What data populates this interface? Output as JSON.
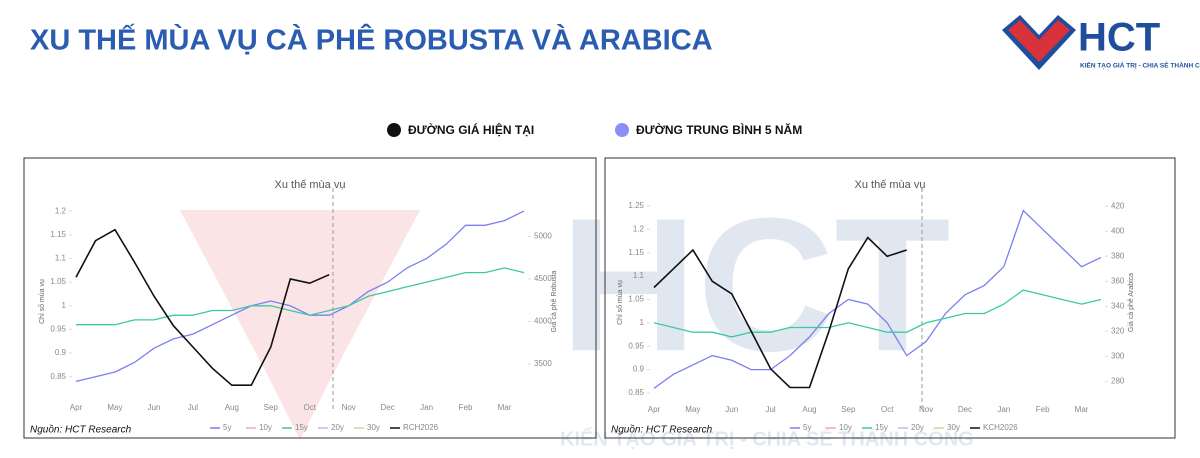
{
  "header": {
    "title": "XU THẾ MÙA VỤ CÀ PHÊ ROBUSTA VÀ ARABICA",
    "logo": "HCT",
    "tagline": "KIẾN TẠO GIÁ TRỊ - CHIA SẺ THÀNH CÔNG"
  },
  "legend": {
    "current": "ĐƯỜNG GIÁ HIỆN TẠI",
    "average": "ĐƯỜNG TRUNG BÌNH 5 NĂM"
  },
  "chart_data": [
    {
      "type": "line",
      "title": "Xu thế mùa vụ",
      "source": "Nguồn: HCT Research",
      "y_label": "Chỉ số mùa vụ",
      "y2_label": "Giá cà phê Robusta",
      "categories": [
        "Apr",
        null,
        "May",
        null,
        "Jun",
        null,
        "Jul",
        null,
        "Aug",
        null,
        "Sep",
        null,
        "Oct",
        null,
        "Nov",
        null,
        "Dec",
        null,
        "Jan",
        null,
        "Feb",
        null,
        "Mar",
        null
      ],
      "ylim": [
        0.805,
        1.213
      ],
      "yticks": [
        0.85,
        0.9,
        0.95,
        1,
        1.05,
        1.1,
        1.15,
        1.2
      ],
      "y2lim": [
        3100,
        5370
      ],
      "y2ticks": [
        3500,
        4000,
        4500,
        5000
      ],
      "series": [
        {
          "name": "5y",
          "color": "#7b7ff0",
          "values": [
            0.84,
            0.85,
            0.86,
            0.88,
            0.91,
            0.93,
            0.94,
            0.96,
            0.98,
            1.0,
            1.01,
            1.0,
            0.98,
            0.98,
            1.0,
            1.03,
            1.05,
            1.08,
            1.1,
            1.13,
            1.17,
            1.17,
            1.18,
            1.2
          ]
        },
        {
          "name": "15y",
          "color": "#3cc9a0",
          "values": [
            0.96,
            0.96,
            0.96,
            0.97,
            0.97,
            0.98,
            0.98,
            0.99,
            0.99,
            1.0,
            1.0,
            0.99,
            0.98,
            0.99,
            1.0,
            1.02,
            1.03,
            1.04,
            1.05,
            1.06,
            1.07,
            1.07,
            1.08,
            1.07
          ]
        },
        {
          "name": "RCH2026",
          "color": "#111111",
          "axis": "y2",
          "values": [
            4520,
            4950,
            5080,
            4700,
            4300,
            3950,
            3700,
            3450,
            3250,
            3250,
            3700,
            4500,
            4450,
            4550,
            null,
            null,
            null,
            null,
            null,
            null,
            null,
            null,
            null,
            null
          ]
        }
      ],
      "hidden_series": [
        {
          "name": "10y",
          "color": "#f4a6c0"
        },
        {
          "name": "20y",
          "color": "#c9b6f0"
        },
        {
          "name": "30y",
          "color": "#cfd8a0"
        }
      ]
    },
    {
      "type": "line",
      "title": "Xu thế mùa vụ",
      "source": "Nguồn: HCT Research",
      "y_label": "Chỉ số mùa vụ",
      "y2_label": "Giá cà phê Arabica",
      "categories": [
        "Apr",
        null,
        "May",
        null,
        "Jun",
        null,
        "Jul",
        null,
        "Aug",
        null,
        "Sep",
        null,
        "Oct",
        null,
        "Nov",
        null,
        "Dec",
        null,
        "Jan",
        null,
        "Feb",
        null,
        "Mar",
        null
      ],
      "ylim": [
        0.835,
        1.252
      ],
      "yticks": [
        0.85,
        0.9,
        0.95,
        1,
        1.05,
        1.1,
        1.15,
        1.2,
        1.25
      ],
      "y2lim": [
        265,
        421
      ],
      "y2ticks": [
        280,
        300,
        320,
        340,
        360,
        380,
        400,
        420
      ],
      "series": [
        {
          "name": "5y",
          "color": "#7b7ff0",
          "values": [
            0.86,
            0.89,
            0.91,
            0.93,
            0.92,
            0.9,
            0.9,
            0.93,
            0.97,
            1.02,
            1.05,
            1.04,
            1.0,
            0.93,
            0.96,
            1.02,
            1.06,
            1.08,
            1.12,
            1.24,
            1.2,
            1.16,
            1.12,
            1.14
          ]
        },
        {
          "name": "15y",
          "color": "#3cc9a0",
          "values": [
            1.0,
            0.99,
            0.98,
            0.98,
            0.97,
            0.98,
            0.98,
            0.99,
            0.99,
            0.99,
            1.0,
            0.99,
            0.98,
            0.98,
            1.0,
            1.01,
            1.02,
            1.02,
            1.04,
            1.07,
            1.06,
            1.05,
            1.04,
            1.05
          ]
        },
        {
          "name": "KCH2026",
          "color": "#111111",
          "axis": "y2",
          "values": [
            355,
            370,
            385,
            360,
            350,
            320,
            290,
            275,
            275,
            320,
            370,
            395,
            380,
            385,
            null,
            null,
            null,
            null,
            null,
            null,
            null,
            null,
            null,
            null
          ]
        }
      ],
      "hidden_series": [
        {
          "name": "10y",
          "color": "#f4a6c0"
        },
        {
          "name": "20y",
          "color": "#c9b6f0"
        },
        {
          "name": "30y",
          "color": "#cfd8a0"
        }
      ]
    }
  ]
}
